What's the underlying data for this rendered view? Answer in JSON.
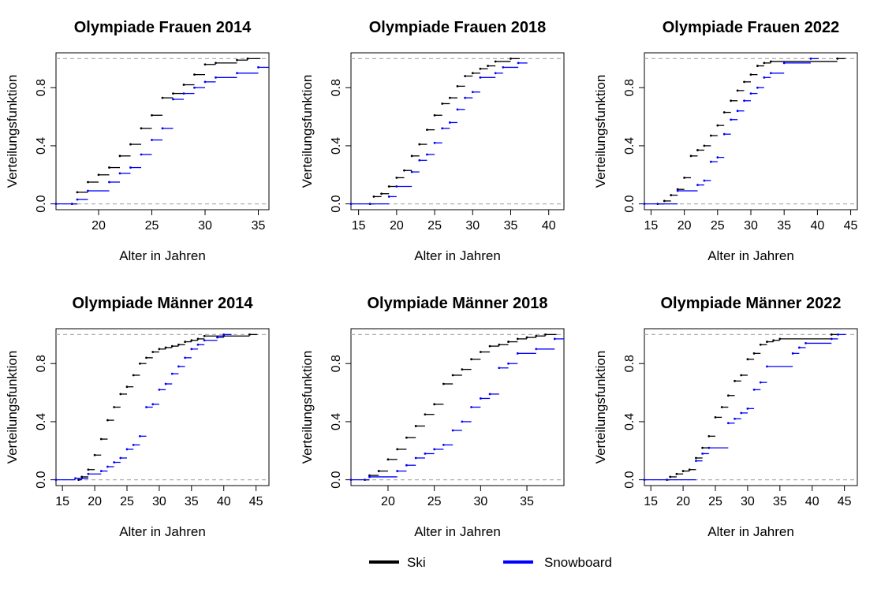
{
  "series_colors": {
    "Ski": "#000000",
    "Snowboard": "#0000ff"
  },
  "legend": {
    "items": [
      {
        "name": "Ski",
        "color": "#000000"
      },
      {
        "name": "Snowboard",
        "color": "#0000ff"
      }
    ],
    "placement": "bottom-center"
  },
  "chart_data": [
    {
      "type": "line",
      "step": "ecdf",
      "title": "Olympiade Frauen 2014",
      "xlabel": "Alter in Jahren",
      "ylabel": "Verteilungsfunktion",
      "xlim": [
        16,
        36
      ],
      "ylim": [
        0,
        1
      ],
      "xticks": [
        "20",
        "25",
        "30",
        "35"
      ],
      "yticks": [
        "0.0",
        "0.4",
        "0.8"
      ],
      "reference_lines": [
        0,
        1
      ],
      "series": [
        {
          "name": "Ski",
          "steps": [
            [
              17.5,
              0
            ],
            [
              18,
              0.08
            ],
            [
              19,
              0.15
            ],
            [
              20,
              0.2
            ],
            [
              21,
              0.25
            ],
            [
              22,
              0.33
            ],
            [
              23,
              0.41
            ],
            [
              24,
              0.52
            ],
            [
              25,
              0.61
            ],
            [
              26,
              0.73
            ],
            [
              27,
              0.76
            ],
            [
              28,
              0.82
            ],
            [
              29,
              0.89
            ],
            [
              30,
              0.96
            ],
            [
              31,
              0.97
            ],
            [
              33,
              0.99
            ],
            [
              34,
              1
            ]
          ]
        },
        {
          "name": "Snowboard",
          "steps": [
            [
              16,
              0
            ],
            [
              18,
              0.03
            ],
            [
              19,
              0.09
            ],
            [
              21,
              0.15
            ],
            [
              22,
              0.21
            ],
            [
              23,
              0.25
            ],
            [
              24,
              0.34
            ],
            [
              25,
              0.44
            ],
            [
              26,
              0.52
            ],
            [
              27,
              0.72
            ],
            [
              28,
              0.76
            ],
            [
              29,
              0.8
            ],
            [
              30,
              0.84
            ],
            [
              31,
              0.87
            ],
            [
              33,
              0.9
            ],
            [
              35,
              0.94
            ],
            [
              36,
              0.97
            ]
          ]
        }
      ]
    },
    {
      "type": "line",
      "step": "ecdf",
      "title": "Olympiade Frauen 2018",
      "xlabel": "Alter in Jahren",
      "ylabel": "Verteilungsfunktion",
      "xlim": [
        14,
        42
      ],
      "ylim": [
        0,
        1
      ],
      "xticks": [
        "15",
        "20",
        "25",
        "30",
        "35",
        "40"
      ],
      "yticks": [
        "0.0",
        "0.4",
        "0.8"
      ],
      "reference_lines": [
        0,
        1
      ],
      "series": [
        {
          "name": "Ski",
          "steps": [
            [
              16.5,
              0
            ],
            [
              17,
              0.05
            ],
            [
              18,
              0.07
            ],
            [
              19,
              0.12
            ],
            [
              20,
              0.18
            ],
            [
              21,
              0.23
            ],
            [
              22,
              0.33
            ],
            [
              23,
              0.41
            ],
            [
              24,
              0.51
            ],
            [
              25,
              0.61
            ],
            [
              26,
              0.69
            ],
            [
              27,
              0.73
            ],
            [
              28,
              0.81
            ],
            [
              29,
              0.88
            ],
            [
              30,
              0.9
            ],
            [
              31,
              0.93
            ],
            [
              32,
              0.95
            ],
            [
              33,
              0.98
            ],
            [
              35,
              1
            ]
          ]
        },
        {
          "name": "Snowboard",
          "steps": [
            [
              14,
              0
            ],
            [
              19,
              0.05
            ],
            [
              20,
              0.12
            ],
            [
              22,
              0.22
            ],
            [
              23,
              0.3
            ],
            [
              24,
              0.34
            ],
            [
              25,
              0.42
            ],
            [
              26,
              0.52
            ],
            [
              27,
              0.56
            ],
            [
              28,
              0.65
            ],
            [
              29,
              0.73
            ],
            [
              30,
              0.77
            ],
            [
              31,
              0.87
            ],
            [
              33,
              0.9
            ],
            [
              34,
              0.94
            ],
            [
              36,
              0.97
            ]
          ]
        }
      ]
    },
    {
      "type": "line",
      "step": "ecdf",
      "title": "Olympiade Frauen 2022",
      "xlabel": "Alter in Jahren",
      "ylabel": "Verteilungsfunktion",
      "xlim": [
        14,
        46
      ],
      "ylim": [
        0,
        1
      ],
      "xticks": [
        "15",
        "20",
        "25",
        "30",
        "35",
        "40",
        "45"
      ],
      "yticks": [
        "0.0",
        "0.4",
        "0.8"
      ],
      "reference_lines": [
        0,
        1
      ],
      "series": [
        {
          "name": "Ski",
          "steps": [
            [
              16,
              0
            ],
            [
              17,
              0.02
            ],
            [
              18,
              0.06
            ],
            [
              19,
              0.1
            ],
            [
              20,
              0.18
            ],
            [
              21,
              0.33
            ],
            [
              22,
              0.37
            ],
            [
              23,
              0.4
            ],
            [
              24,
              0.47
            ],
            [
              25,
              0.54
            ],
            [
              26,
              0.63
            ],
            [
              27,
              0.71
            ],
            [
              28,
              0.78
            ],
            [
              29,
              0.84
            ],
            [
              30,
              0.89
            ],
            [
              31,
              0.95
            ],
            [
              32,
              0.97
            ],
            [
              33,
              0.98
            ],
            [
              43,
              1
            ]
          ]
        },
        {
          "name": "Snowboard",
          "steps": [
            [
              14,
              0
            ],
            [
              19,
              0.09
            ],
            [
              22,
              0.13
            ],
            [
              23,
              0.16
            ],
            [
              24,
              0.29
            ],
            [
              25,
              0.32
            ],
            [
              26,
              0.48
            ],
            [
              27,
              0.58
            ],
            [
              28,
              0.64
            ],
            [
              29,
              0.71
            ],
            [
              30,
              0.76
            ],
            [
              31,
              0.8
            ],
            [
              32,
              0.87
            ],
            [
              33,
              0.9
            ],
            [
              35,
              0.97
            ],
            [
              39,
              1
            ]
          ]
        }
      ]
    },
    {
      "type": "line",
      "step": "ecdf",
      "title": "Olympiade Männer 2014",
      "xlabel": "Alter in Jahren",
      "ylabel": "Verteilungsfunktion",
      "xlim": [
        14,
        47
      ],
      "ylim": [
        0,
        1
      ],
      "xticks": [
        "15",
        "20",
        "25",
        "30",
        "35",
        "40",
        "45"
      ],
      "yticks": [
        "0.0",
        "0.4",
        "0.8"
      ],
      "reference_lines": [
        0,
        1
      ],
      "series": [
        {
          "name": "Ski",
          "steps": [
            [
              17.5,
              0
            ],
            [
              18,
              0.02
            ],
            [
              19,
              0.07
            ],
            [
              20,
              0.17
            ],
            [
              21,
              0.28
            ],
            [
              22,
              0.41
            ],
            [
              23,
              0.5
            ],
            [
              24,
              0.59
            ],
            [
              25,
              0.64
            ],
            [
              26,
              0.72
            ],
            [
              27,
              0.8
            ],
            [
              28,
              0.84
            ],
            [
              29,
              0.88
            ],
            [
              30,
              0.9
            ],
            [
              31,
              0.91
            ],
            [
              32,
              0.92
            ],
            [
              33,
              0.93
            ],
            [
              34,
              0.95
            ],
            [
              35,
              0.96
            ],
            [
              36,
              0.97
            ],
            [
              37,
              0.99
            ],
            [
              40,
              0.99
            ],
            [
              44,
              1
            ]
          ]
        },
        {
          "name": "Snowboard",
          "steps": [
            [
              14,
              0
            ],
            [
              17,
              0.01
            ],
            [
              18,
              0.01
            ],
            [
              19,
              0.04
            ],
            [
              21,
              0.06
            ],
            [
              22,
              0.09
            ],
            [
              23,
              0.12
            ],
            [
              24,
              0.15
            ],
            [
              25,
              0.21
            ],
            [
              26,
              0.24
            ],
            [
              27,
              0.3
            ],
            [
              28,
              0.5
            ],
            [
              29,
              0.52
            ],
            [
              30,
              0.62
            ],
            [
              31,
              0.66
            ],
            [
              32,
              0.73
            ],
            [
              33,
              0.78
            ],
            [
              34,
              0.84
            ],
            [
              35,
              0.9
            ],
            [
              36,
              0.93
            ],
            [
              37,
              0.96
            ],
            [
              39,
              0.98
            ],
            [
              40,
              1
            ]
          ]
        }
      ]
    },
    {
      "type": "line",
      "step": "ecdf",
      "title": "Olympiade Männer 2018",
      "xlabel": "Alter in Jahren",
      "ylabel": "Verteilungsfunktion",
      "xlim": [
        16,
        39
      ],
      "ylim": [
        0,
        1
      ],
      "xticks": [
        "20",
        "25",
        "30",
        "35"
      ],
      "yticks": [
        "0.0",
        "0.4",
        "0.8"
      ],
      "reference_lines": [
        0,
        1
      ],
      "series": [
        {
          "name": "Ski",
          "steps": [
            [
              17.5,
              0
            ],
            [
              18,
              0.03
            ],
            [
              19,
              0.06
            ],
            [
              20,
              0.14
            ],
            [
              21,
              0.21
            ],
            [
              22,
              0.29
            ],
            [
              23,
              0.37
            ],
            [
              24,
              0.45
            ],
            [
              25,
              0.52
            ],
            [
              26,
              0.66
            ],
            [
              27,
              0.72
            ],
            [
              28,
              0.76
            ],
            [
              29,
              0.83
            ],
            [
              30,
              0.88
            ],
            [
              31,
              0.92
            ],
            [
              32,
              0.93
            ],
            [
              33,
              0.95
            ],
            [
              34,
              0.97
            ],
            [
              35,
              0.98
            ],
            [
              36,
              0.99
            ],
            [
              37,
              1
            ]
          ]
        },
        {
          "name": "Snowboard",
          "steps": [
            [
              16,
              0
            ],
            [
              18,
              0.02
            ],
            [
              21,
              0.06
            ],
            [
              22,
              0.1
            ],
            [
              23,
              0.15
            ],
            [
              24,
              0.18
            ],
            [
              25,
              0.21
            ],
            [
              26,
              0.24
            ],
            [
              27,
              0.34
            ],
            [
              28,
              0.4
            ],
            [
              29,
              0.5
            ],
            [
              30,
              0.56
            ],
            [
              31,
              0.59
            ],
            [
              32,
              0.77
            ],
            [
              33,
              0.8
            ],
            [
              34,
              0.87
            ],
            [
              36,
              0.9
            ],
            [
              38,
              0.97
            ],
            [
              39,
              1
            ]
          ]
        }
      ]
    },
    {
      "type": "line",
      "step": "ecdf",
      "title": "Olympiade Männer 2022",
      "xlabel": "Alter in Jahren",
      "ylabel": "Verteilungsfunktion",
      "xlim": [
        14,
        47
      ],
      "ylim": [
        0,
        1
      ],
      "xticks": [
        "15",
        "20",
        "25",
        "30",
        "35",
        "40",
        "45"
      ],
      "yticks": [
        "0.0",
        "0.4",
        "0.8"
      ],
      "reference_lines": [
        0,
        1
      ],
      "series": [
        {
          "name": "Ski",
          "steps": [
            [
              17.5,
              0
            ],
            [
              18,
              0.02
            ],
            [
              19,
              0.04
            ],
            [
              20,
              0.06
            ],
            [
              21,
              0.07
            ],
            [
              22,
              0.15
            ],
            [
              23,
              0.22
            ],
            [
              24,
              0.3
            ],
            [
              25,
              0.43
            ],
            [
              26,
              0.5
            ],
            [
              27,
              0.58
            ],
            [
              28,
              0.68
            ],
            [
              29,
              0.72
            ],
            [
              30,
              0.83
            ],
            [
              31,
              0.87
            ],
            [
              32,
              0.93
            ],
            [
              33,
              0.95
            ],
            [
              34,
              0.96
            ],
            [
              35,
              0.97
            ],
            [
              43,
              1
            ]
          ]
        },
        {
          "name": "Snowboard",
          "steps": [
            [
              14,
              0
            ],
            [
              22,
              0.13
            ],
            [
              23,
              0.18
            ],
            [
              24,
              0.22
            ],
            [
              27,
              0.39
            ],
            [
              28,
              0.42
            ],
            [
              29,
              0.46
            ],
            [
              30,
              0.49
            ],
            [
              31,
              0.62
            ],
            [
              32,
              0.67
            ],
            [
              33,
              0.78
            ],
            [
              37,
              0.87
            ],
            [
              38,
              0.91
            ],
            [
              39,
              0.94
            ],
            [
              43,
              0.97
            ],
            [
              44,
              1
            ]
          ]
        }
      ]
    }
  ]
}
